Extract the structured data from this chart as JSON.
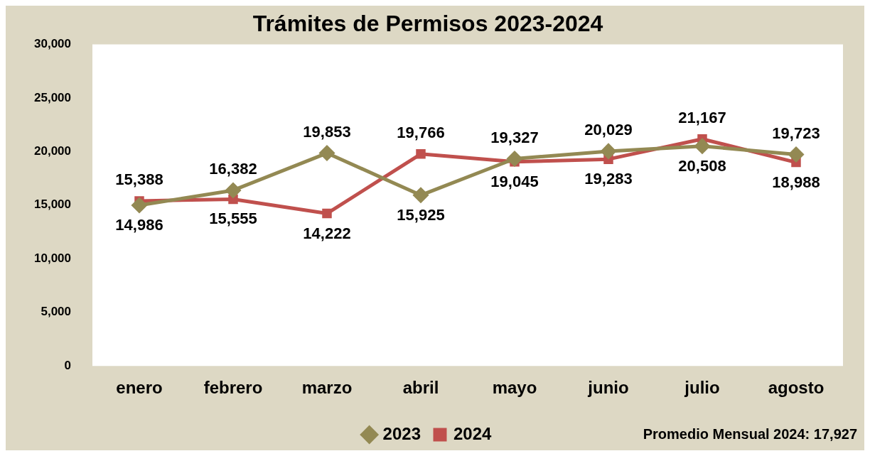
{
  "chart_data": {
    "type": "line",
    "title": "Trámites de Permisos 2023-2024",
    "categories": [
      "enero",
      "febrero",
      "marzo",
      "abril",
      "mayo",
      "junio",
      "julio",
      "agosto"
    ],
    "series": [
      {
        "name": "2023",
        "color": "#938953",
        "marker": "diamond",
        "values": [
          14986,
          16382,
          19853,
          15925,
          19327,
          20029,
          20508,
          19723
        ],
        "value_labels": [
          "14,986",
          "16,382",
          "19,853",
          "15,925",
          "19,327",
          "20,029",
          "20,508",
          "19,723"
        ]
      },
      {
        "name": "2024",
        "color": "#c0504d",
        "marker": "square",
        "values": [
          15388,
          15555,
          14222,
          19766,
          19045,
          19283,
          21167,
          18988
        ],
        "value_labels": [
          "15,388",
          "15,555",
          "14,222",
          "19,766",
          "19,045",
          "19,283",
          "21,167",
          "18,988"
        ]
      }
    ],
    "ylim": [
      0,
      30000
    ],
    "yticks": [
      {
        "value": 0,
        "label": "0"
      },
      {
        "value": 5000,
        "label": "5,000"
      },
      {
        "value": 10000,
        "label": "10,000"
      },
      {
        "value": 15000,
        "label": "15,000"
      },
      {
        "value": 20000,
        "label": "20,000"
      },
      {
        "value": 25000,
        "label": "25,000"
      },
      {
        "value": 30000,
        "label": "30,000"
      }
    ],
    "grid": false,
    "legend": "bottom",
    "line_style": "solid",
    "annotations": [
      "Promedio Mensual 2024: 17,927"
    ]
  }
}
